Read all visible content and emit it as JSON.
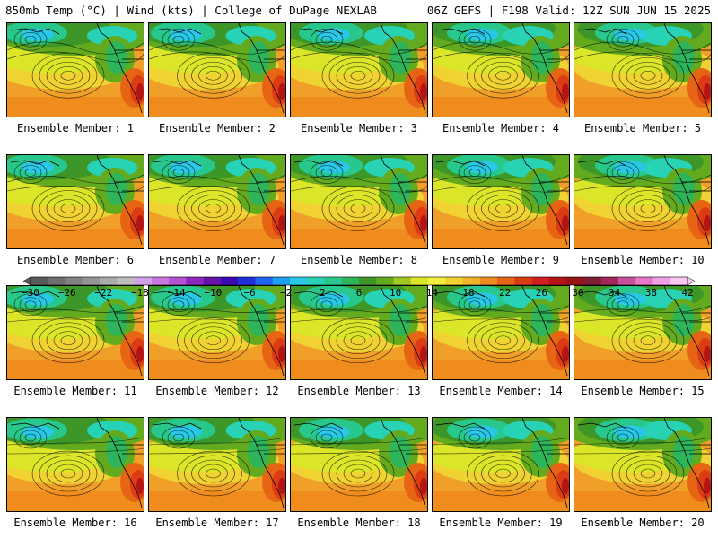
{
  "header": {
    "left": "850mb Temp (°C) | Wind (kts) | College of DuPage NEXLAB",
    "right": "06Z GEFS | F198 Valid: 12Z SUN JUN 15 2025"
  },
  "members": [
    "Ensemble Member: 1",
    "Ensemble Member: 2",
    "Ensemble Member: 3",
    "Ensemble Member: 4",
    "Ensemble Member: 5",
    "Ensemble Member: 6",
    "Ensemble Member: 7",
    "Ensemble Member: 8",
    "Ensemble Member: 9",
    "Ensemble Member: 10",
    "Ensemble Member: 11",
    "Ensemble Member: 12",
    "Ensemble Member: 13",
    "Ensemble Member: 14",
    "Ensemble Member: 15",
    "Ensemble Member: 16",
    "Ensemble Member: 17",
    "Ensemble Member: 18",
    "Ensemble Member: 19",
    "Ensemble Member: 20"
  ],
  "colorbar": {
    "labels": [
      "−30",
      "−26",
      "−22",
      "−18",
      "−14",
      "−10",
      "−6",
      "−2",
      "2",
      "6",
      "10",
      "14",
      "18",
      "22",
      "26",
      "30",
      "34",
      "38",
      "42"
    ],
    "colors": [
      "#5a5a5a",
      "#6e6e6e",
      "#828282",
      "#969696",
      "#aaaaaa",
      "#bebebe",
      "#d2a0e6",
      "#c878dc",
      "#b450d2",
      "#8c28be",
      "#6414aa",
      "#3c0ab4",
      "#2030d8",
      "#1e64f0",
      "#1ea0f0",
      "#28c8e6",
      "#28d2b4",
      "#28c88c",
      "#2eb45a",
      "#3c9628",
      "#64aa1e",
      "#a0c81e",
      "#dce628",
      "#f0f03c",
      "#f0d232",
      "#f0b428",
      "#f08c1e",
      "#e66414",
      "#dc3c14",
      "#d21e1e",
      "#b41414",
      "#961414",
      "#821e32",
      "#a0285a",
      "#c8509a",
      "#e678c8",
      "#f0a0e6",
      "#fac8f0"
    ]
  }
}
